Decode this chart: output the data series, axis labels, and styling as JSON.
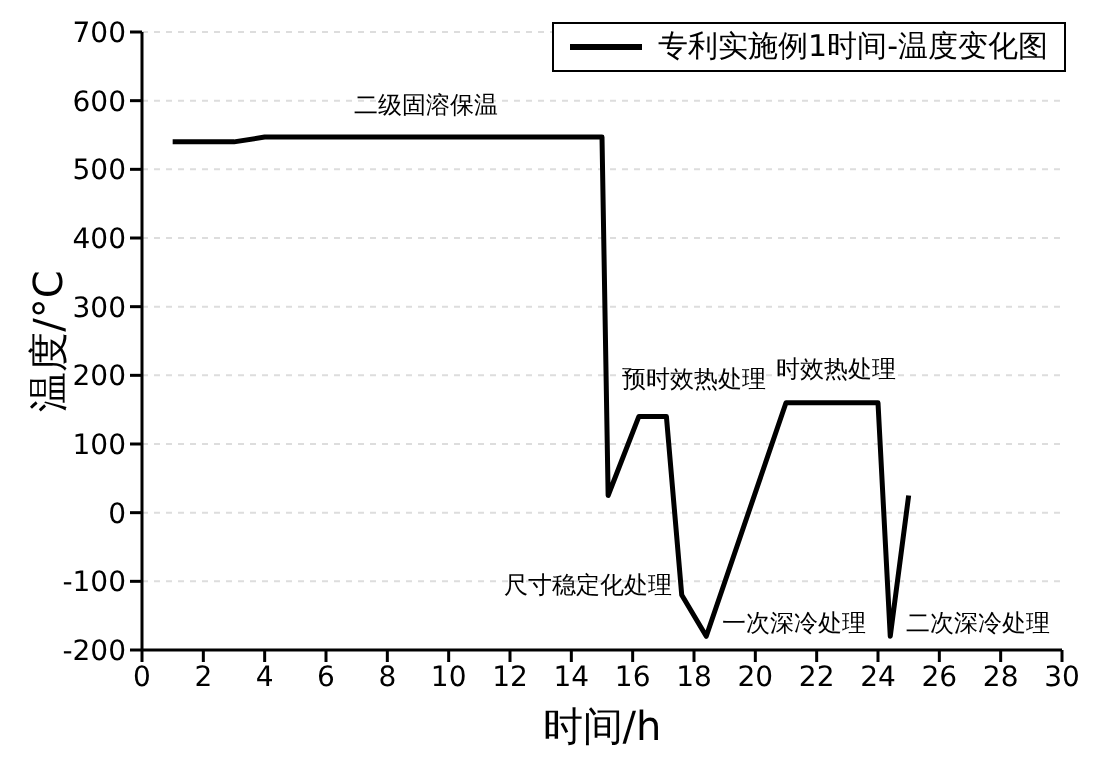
{
  "chart_data": {
    "type": "line",
    "xlabel": "时间/h",
    "ylabel": "温度/°C",
    "x": [
      1,
      3,
      4,
      15,
      15.2,
      16.2,
      17.1,
      17.6,
      18.4,
      21,
      24,
      24.4,
      25
    ],
    "series": [
      {
        "name": "专利实施例1时间-温度变化图",
        "color": "#000000",
        "values": [
          540,
          540,
          547,
          547,
          25,
          140,
          140,
          -120,
          -180,
          160,
          160,
          -180,
          25
        ]
      }
    ],
    "xlim": [
      0,
      30
    ],
    "xticks": [
      0,
      2,
      4,
      6,
      8,
      10,
      12,
      14,
      16,
      18,
      20,
      22,
      24,
      26,
      28,
      30
    ],
    "ylim": [
      -200,
      700
    ],
    "yticks": [
      -200,
      -100,
      0,
      100,
      200,
      300,
      400,
      500,
      600,
      700
    ],
    "grid": "y",
    "legend": "top right",
    "marker": "none",
    "line_style": "solid",
    "annotations": [
      "二级固溶保温",
      "预时效热处理",
      "时效热处理",
      "尺寸稳定化处理",
      "一次深冷处理",
      "二次深冷处理"
    ]
  }
}
